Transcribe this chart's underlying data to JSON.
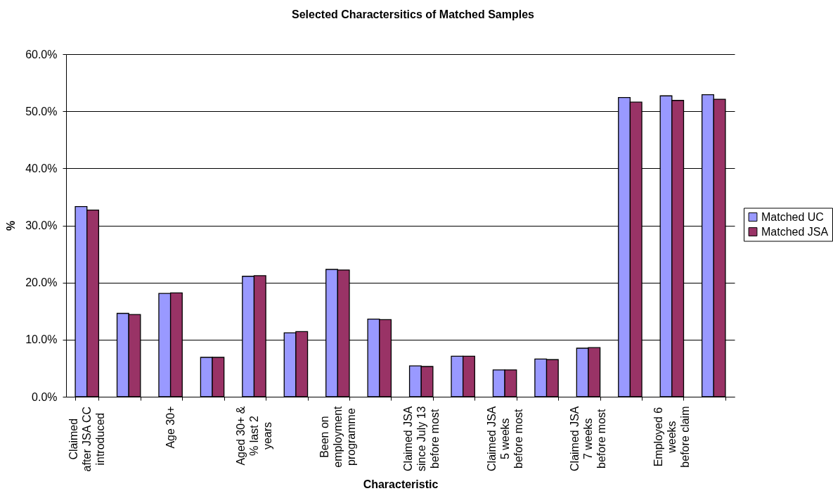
{
  "chart_data": {
    "type": "bar",
    "title": "Selected Charactersitics of Matched Samples",
    "xlabel": "Characteristic",
    "ylabel": "%",
    "categories": [
      "Claimed after JSA CC introduced",
      null,
      "Age 30+",
      null,
      "Aged 30+ & % last 2 years",
      null,
      "Been on employment programme",
      null,
      "Claimed JSA since July 13 before most",
      null,
      "Claimed JSA 5 weeks before most",
      null,
      "Claimed JSA 7 weeks before most",
      null,
      "Employed 6 weeks before claim",
      null
    ],
    "series": [
      {
        "name": "Matched UC",
        "color": "#9999ff",
        "values": [
          33.3,
          14.6,
          18.1,
          6.9,
          21.1,
          11.2,
          22.3,
          13.6,
          5.4,
          7.1,
          4.7,
          6.6,
          8.5,
          52.4,
          52.7,
          52.9
        ]
      },
      {
        "name": "Matched JSA",
        "color": "#993366",
        "values": [
          32.7,
          14.4,
          18.2,
          6.9,
          21.2,
          11.4,
          22.2,
          13.5,
          5.3,
          7.1,
          4.7,
          6.5,
          8.6,
          51.6,
          51.9,
          52.1
        ]
      }
    ],
    "ylim": [
      0,
      60
    ],
    "yticks": [
      {
        "value": 0,
        "label": "0.0%"
      },
      {
        "value": 10,
        "label": "10.0%"
      },
      {
        "value": 20,
        "label": "20.0%"
      },
      {
        "value": 30,
        "label": "30.0%"
      },
      {
        "value": 40,
        "label": "40.0%"
      },
      {
        "value": 50,
        "label": "50.0%"
      },
      {
        "value": 60,
        "label": "60.0%"
      }
    ],
    "grid": "y",
    "legend": "right"
  }
}
